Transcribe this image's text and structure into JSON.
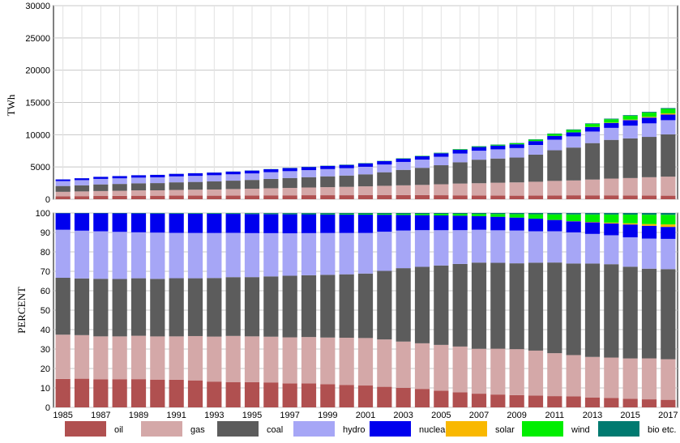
{
  "chart_data": [
    {
      "type": "bar",
      "stacked": true,
      "ylabel": "TWh",
      "ylim": [
        0,
        30000
      ],
      "yticks": [
        "0",
        "5000",
        "10000",
        "15000",
        "20000",
        "25000",
        "30000"
      ],
      "grid": true,
      "x": [
        1985,
        1986,
        1987,
        1988,
        1989,
        1990,
        1991,
        1992,
        1993,
        1994,
        1995,
        1996,
        1997,
        1998,
        1999,
        2000,
        2001,
        2002,
        2003,
        2004,
        2005,
        2006,
        2007,
        2008,
        2009,
        2010,
        2011,
        2012,
        2013,
        2014,
        2015,
        2016,
        2017
      ],
      "series": [
        {
          "name": "oil",
          "values": [
            450,
            480,
            500,
            520,
            540,
            540,
            560,
            560,
            550,
            560,
            580,
            600,
            600,
            620,
            620,
            620,
            630,
            630,
            640,
            640,
            620,
            600,
            580,
            560,
            550,
            560,
            590,
            610,
            600,
            600,
            580,
            560,
            550
          ]
        },
        {
          "name": "gas",
          "values": [
            700,
            730,
            770,
            790,
            830,
            840,
            880,
            920,
            960,
            1020,
            1050,
            1100,
            1150,
            1200,
            1250,
            1300,
            1370,
            1450,
            1510,
            1580,
            1700,
            1830,
            1900,
            2000,
            2060,
            2150,
            2250,
            2300,
            2450,
            2600,
            2700,
            2850,
            2950
          ]
        },
        {
          "name": "coal",
          "values": [
            900,
            950,
            1030,
            1060,
            1100,
            1120,
            1180,
            1200,
            1250,
            1300,
            1360,
            1450,
            1540,
            1600,
            1680,
            1750,
            1860,
            2100,
            2400,
            2650,
            2950,
            3300,
            3650,
            3750,
            3850,
            4200,
            4750,
            5100,
            5650,
            6000,
            6150,
            6250,
            6550
          ]
        },
        {
          "name": "hydro",
          "values": [
            760,
            800,
            850,
            870,
            880,
            900,
            920,
            940,
            960,
            980,
            1010,
            1040,
            1060,
            1090,
            1120,
            1140,
            1170,
            1200,
            1230,
            1270,
            1310,
            1350,
            1390,
            1420,
            1470,
            1500,
            1640,
            1730,
            1790,
            1860,
            1970,
            2100,
            2200
          ]
        },
        {
          "name": "nuclear",
          "values": [
            260,
            290,
            320,
            340,
            360,
            370,
            390,
            400,
            410,
            420,
            440,
            460,
            480,
            490,
            500,
            510,
            530,
            520,
            510,
            520,
            550,
            580,
            580,
            590,
            580,
            600,
            590,
            620,
            700,
            760,
            860,
            890,
            870
          ]
        },
        {
          "name": "solar",
          "values": [
            0,
            0,
            0,
            0,
            0,
            0,
            0,
            0,
            0,
            0,
            0,
            0,
            0,
            0,
            0,
            0,
            0,
            0,
            0,
            0,
            0,
            0,
            0,
            0,
            1,
            2,
            5,
            10,
            25,
            50,
            80,
            120,
            180
          ]
        },
        {
          "name": "wind",
          "values": [
            0,
            0,
            0,
            0,
            0,
            1,
            2,
            3,
            4,
            5,
            7,
            9,
            11,
            13,
            16,
            19,
            22,
            27,
            35,
            45,
            56,
            70,
            90,
            120,
            155,
            210,
            290,
            370,
            450,
            520,
            580,
            650,
            700
          ]
        },
        {
          "name": "bio etc.",
          "values": [
            5,
            6,
            7,
            8,
            9,
            10,
            11,
            12,
            13,
            14,
            15,
            16,
            17,
            18,
            20,
            22,
            24,
            26,
            28,
            30,
            33,
            36,
            40,
            45,
            50,
            60,
            70,
            80,
            90,
            100,
            110,
            120,
            130
          ]
        }
      ]
    },
    {
      "type": "bar",
      "stacked": true,
      "normalized": true,
      "ylabel": "PERCENT",
      "ylim": [
        0,
        100
      ],
      "yticks": [
        "0",
        "10",
        "20",
        "30",
        "40",
        "50",
        "60",
        "70",
        "80",
        "90",
        "100"
      ],
      "grid": true,
      "x": [
        1985,
        1986,
        1987,
        1988,
        1989,
        1990,
        1991,
        1992,
        1993,
        1994,
        1995,
        1996,
        1997,
        1998,
        1999,
        2000,
        2001,
        2002,
        2003,
        2004,
        2005,
        2006,
        2007,
        2008,
        2009,
        2010,
        2011,
        2012,
        2013,
        2014,
        2015,
        2016,
        2017
      ],
      "series_ref": "same as first chart, shown as percent of total"
    }
  ],
  "x_tick_labels": [
    "1985",
    "1987",
    "1989",
    "1991",
    "1993",
    "1995",
    "1997",
    "1999",
    "2001",
    "2003",
    "2005",
    "2007",
    "2009",
    "2011",
    "2013",
    "2015",
    "2017"
  ],
  "legend": {
    "placement": "bottom",
    "items": [
      {
        "label": "oil",
        "color": "#b05050"
      },
      {
        "label": "gas",
        "color": "#d4a8a8"
      },
      {
        "label": "coal",
        "color": "#5c5c5c"
      },
      {
        "label": "hydro",
        "color": "#a6a6f6"
      },
      {
        "label": "nuclear",
        "color": "#0000ee"
      },
      {
        "label": "solar",
        "color": "#f9b800"
      },
      {
        "label": "wind",
        "color": "#00ee00"
      },
      {
        "label": "bio etc.",
        "color": "#007a70"
      }
    ]
  }
}
